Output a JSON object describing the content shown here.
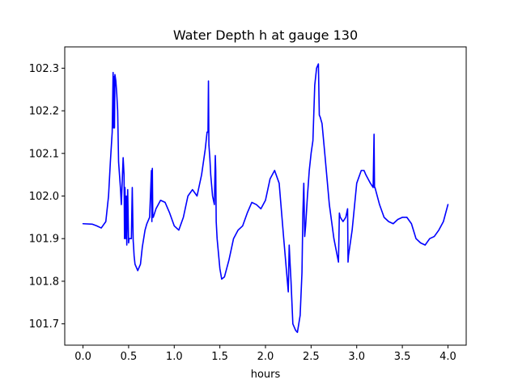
{
  "chart_data": {
    "type": "line",
    "title": "Water Depth h at gauge 130",
    "xlabel": "hours",
    "ylabel": "",
    "xlim": [
      -0.2,
      4.2
    ],
    "ylim": [
      101.65,
      102.35
    ],
    "xticks": [
      0.0,
      0.5,
      1.0,
      1.5,
      2.0,
      2.5,
      3.0,
      3.5,
      4.0
    ],
    "xtick_labels": [
      "0.0",
      "0.5",
      "1.0",
      "1.5",
      "2.0",
      "2.5",
      "3.0",
      "3.5",
      "4.0"
    ],
    "yticks": [
      101.7,
      101.8,
      101.9,
      102.0,
      102.1,
      102.2,
      102.3
    ],
    "ytick_labels": [
      "101.7",
      "101.8",
      "101.9",
      "102.0",
      "102.1",
      "102.2",
      "102.3"
    ],
    "grid": false,
    "series": [
      {
        "color": "#0000ff",
        "x": [
          0.0,
          0.1,
          0.15,
          0.2,
          0.25,
          0.28,
          0.3,
          0.32,
          0.33,
          0.335,
          0.34,
          0.345,
          0.35,
          0.36,
          0.37,
          0.38,
          0.39,
          0.4,
          0.41,
          0.42,
          0.44,
          0.45,
          0.455,
          0.46,
          0.47,
          0.475,
          0.48,
          0.49,
          0.5,
          0.505,
          0.51,
          0.52,
          0.53,
          0.54,
          0.55,
          0.555,
          0.56,
          0.57,
          0.6,
          0.63,
          0.65,
          0.68,
          0.7,
          0.73,
          0.75,
          0.755,
          0.76,
          0.765,
          0.77,
          0.8,
          0.85,
          0.9,
          0.95,
          1.0,
          1.05,
          1.1,
          1.15,
          1.2,
          1.25,
          1.3,
          1.34,
          1.36,
          1.37,
          1.375,
          1.38,
          1.39,
          1.4,
          1.42,
          1.44,
          1.45,
          1.455,
          1.46,
          1.47,
          1.5,
          1.52,
          1.55,
          1.6,
          1.65,
          1.7,
          1.75,
          1.8,
          1.85,
          1.9,
          1.95,
          2.0,
          2.05,
          2.1,
          2.15,
          2.2,
          2.25,
          2.26,
          2.27,
          2.28,
          2.3,
          2.33,
          2.35,
          2.38,
          2.4,
          2.41,
          2.42,
          2.43,
          2.44,
          2.46,
          2.48,
          2.5,
          2.52,
          2.54,
          2.56,
          2.58,
          2.59,
          2.6,
          2.62,
          2.65,
          2.7,
          2.75,
          2.8,
          2.81,
          2.82,
          2.85,
          2.88,
          2.9,
          2.905,
          2.91,
          2.95,
          3.0,
          3.05,
          3.08,
          3.1,
          3.15,
          3.18,
          3.19,
          3.195,
          3.2,
          3.25,
          3.3,
          3.35,
          3.4,
          3.45,
          3.5,
          3.55,
          3.6,
          3.65,
          3.7,
          3.75,
          3.8,
          3.85,
          3.9,
          3.95,
          4.0
        ],
        "y": [
          101.935,
          101.934,
          101.93,
          101.925,
          101.94,
          102.0,
          102.08,
          102.15,
          102.29,
          102.16,
          102.28,
          102.16,
          102.285,
          102.27,
          102.24,
          102.2,
          102.08,
          102.05,
          102.02,
          101.98,
          102.09,
          102.05,
          101.9,
          102.02,
          101.9,
          102.0,
          101.885,
          102.015,
          101.89,
          101.9,
          101.9,
          101.9,
          101.9,
          102.02,
          101.895,
          101.88,
          101.86,
          101.84,
          101.825,
          101.84,
          101.88,
          101.92,
          101.935,
          101.95,
          102.06,
          101.94,
          102.065,
          101.95,
          101.95,
          101.97,
          101.99,
          101.985,
          101.96,
          101.93,
          101.92,
          101.95,
          102.0,
          102.015,
          102.0,
          102.05,
          102.11,
          102.15,
          102.15,
          102.27,
          102.12,
          102.09,
          102.05,
          102.0,
          101.98,
          102.095,
          102.06,
          101.94,
          101.9,
          101.83,
          101.805,
          101.81,
          101.85,
          101.9,
          101.92,
          101.93,
          101.96,
          101.985,
          101.98,
          101.97,
          101.99,
          102.04,
          102.06,
          102.03,
          101.9,
          101.775,
          101.885,
          101.84,
          101.8,
          101.7,
          101.685,
          101.68,
          101.72,
          101.82,
          101.96,
          102.03,
          101.905,
          101.93,
          102.0,
          102.06,
          102.1,
          102.13,
          102.26,
          102.3,
          102.31,
          102.19,
          102.185,
          102.17,
          102.1,
          101.98,
          101.9,
          101.845,
          101.96,
          101.95,
          101.94,
          101.95,
          101.97,
          101.845,
          101.86,
          101.92,
          102.03,
          102.06,
          102.06,
          102.05,
          102.03,
          102.02,
          102.145,
          102.02,
          102.02,
          101.98,
          101.95,
          101.94,
          101.935,
          101.945,
          101.95,
          101.95,
          101.935,
          101.9,
          101.89,
          101.885,
          101.9,
          101.905,
          101.92,
          101.94,
          101.98
        ]
      }
    ]
  }
}
